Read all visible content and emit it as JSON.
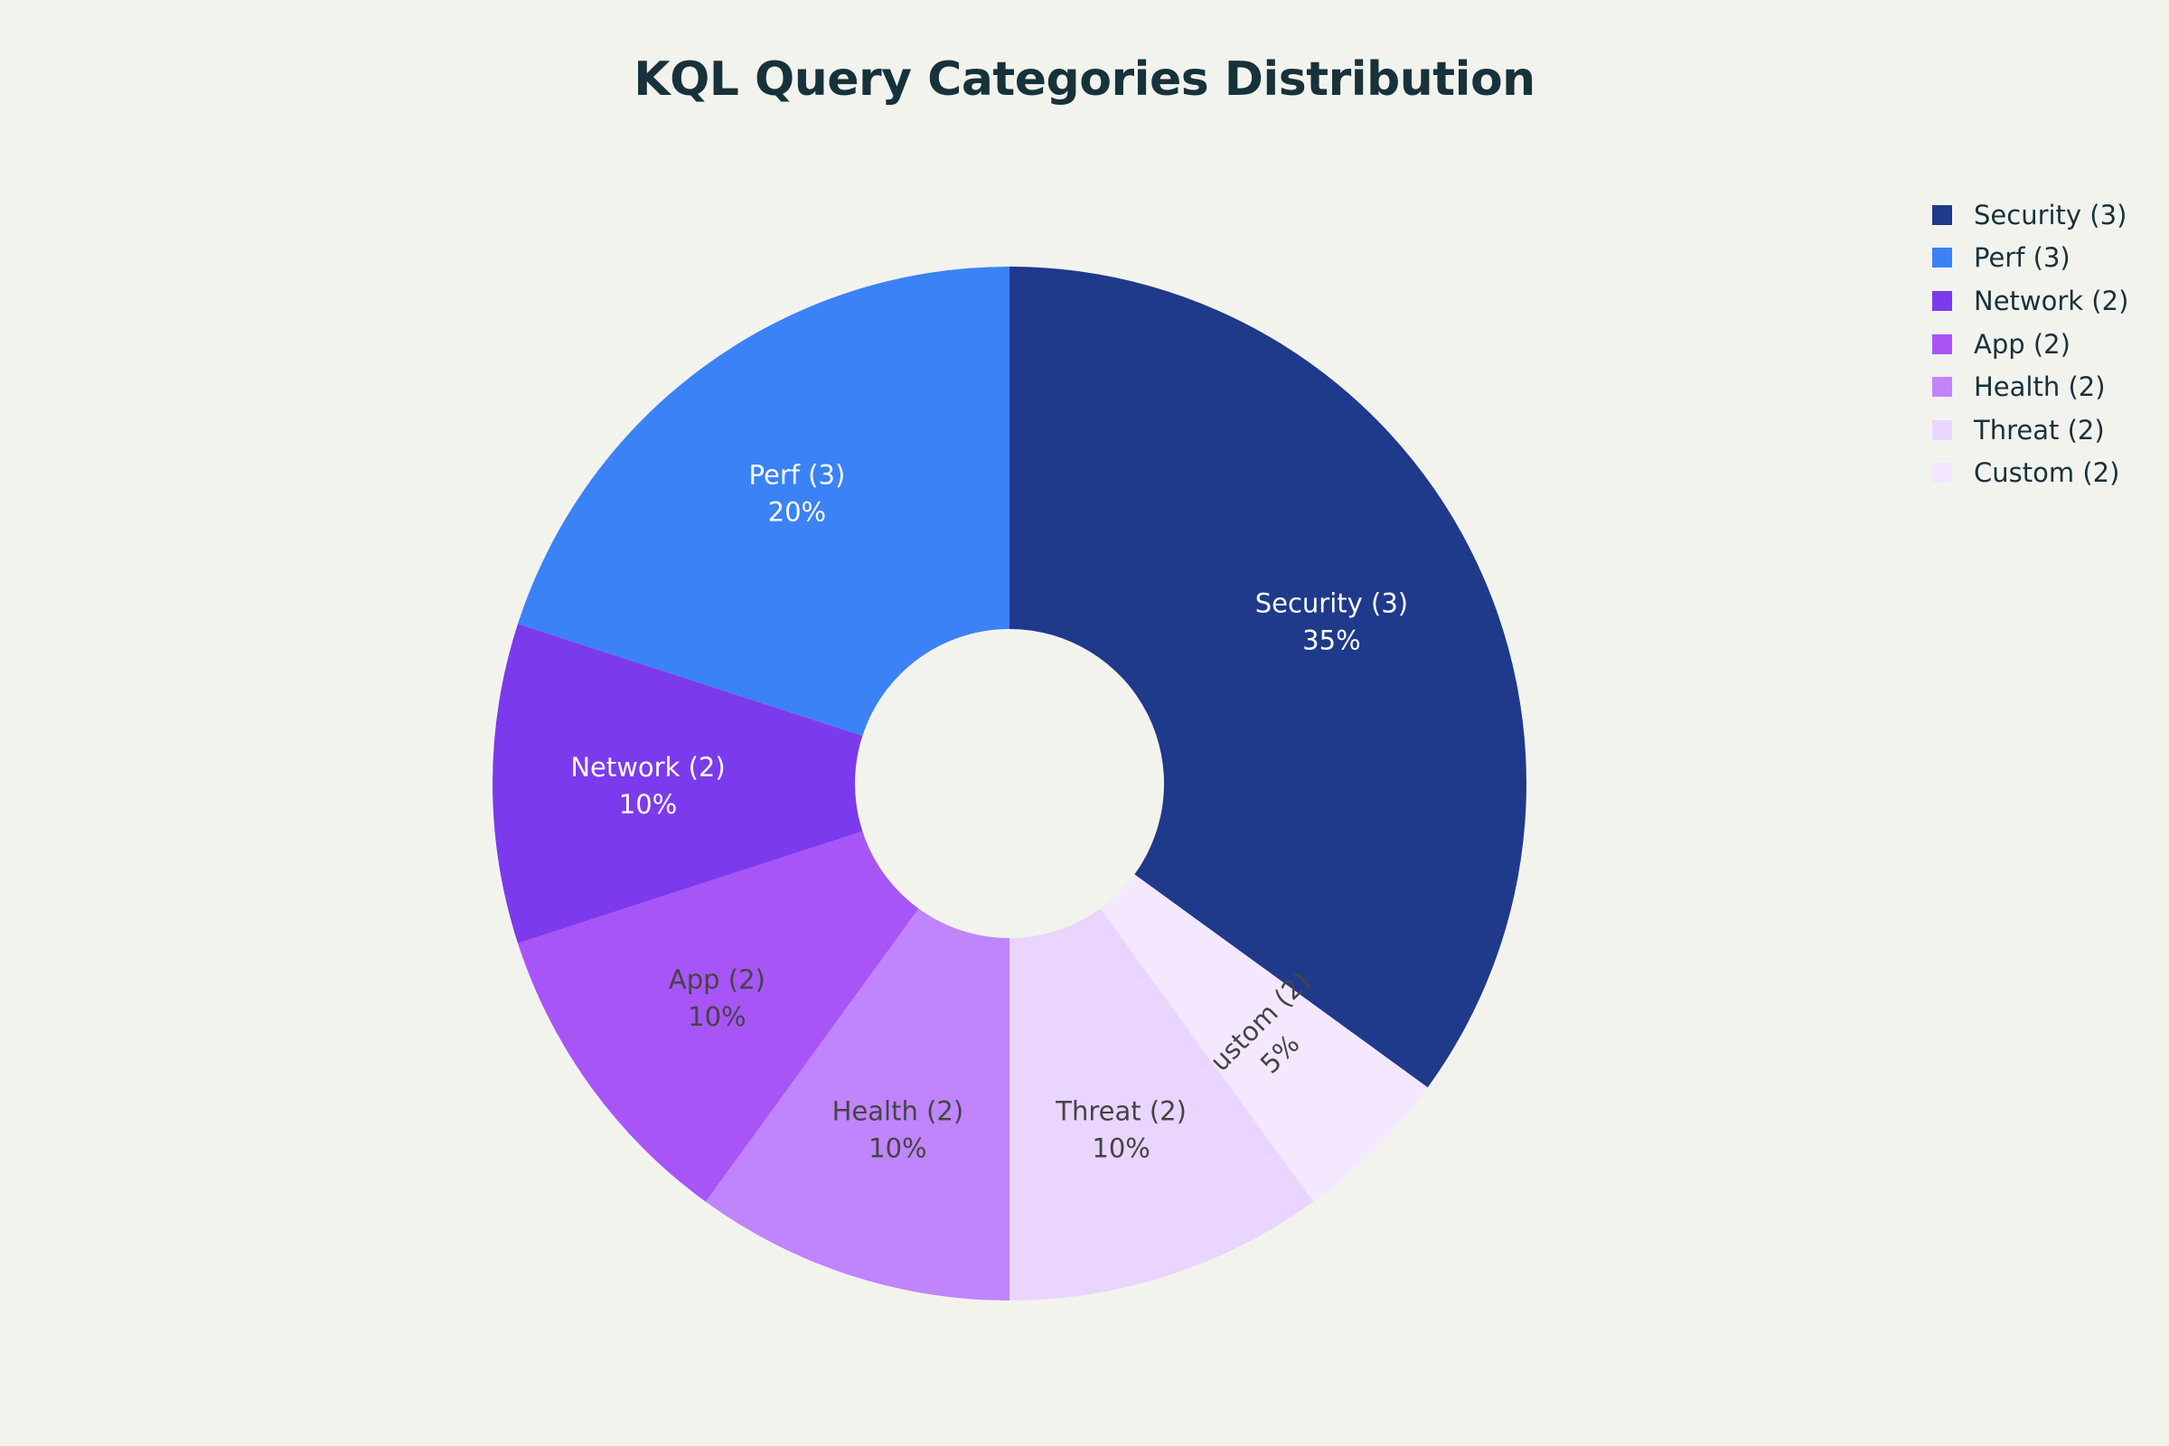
{
  "chart_data": {
    "type": "pie",
    "title": "KQL Query Categories Distribution",
    "hole": true,
    "legend_position": "top-right",
    "slices": [
      {
        "label": "Security (3)",
        "value": 35,
        "percent_label": "35%",
        "color": "#1f3a8a",
        "text_color": "#ffffff"
      },
      {
        "label": "Custom (2)",
        "value": 5,
        "percent_label": "5%",
        "color": "#f3e8ff",
        "text_color": "#444444"
      },
      {
        "label": "Threat (2)",
        "value": 10,
        "percent_label": "10%",
        "color": "#e9d5ff",
        "text_color": "#444444"
      },
      {
        "label": "Health (2)",
        "value": 10,
        "percent_label": "10%",
        "color": "#c084fc",
        "text_color": "#444444"
      },
      {
        "label": "App (2)",
        "value": 10,
        "percent_label": "10%",
        "color": "#a855f7",
        "text_color": "#444444"
      },
      {
        "label": "Network (2)",
        "value": 10,
        "percent_label": "10%",
        "color": "#7c3aed",
        "text_color": "#ffffff"
      },
      {
        "label": "Perf (3)",
        "value": 20,
        "percent_label": "20%",
        "color": "#3b82f6",
        "text_color": "#ffffff"
      }
    ],
    "legend": [
      {
        "label": "Security (3)",
        "color": "#1f3a8a"
      },
      {
        "label": "Perf (3)",
        "color": "#3b82f6"
      },
      {
        "label": "Network (2)",
        "color": "#7c3aed"
      },
      {
        "label": "App (2)",
        "color": "#a855f7"
      },
      {
        "label": "Health (2)",
        "color": "#c084fc"
      },
      {
        "label": "Threat (2)",
        "color": "#e9d5ff"
      },
      {
        "label": "Custom (2)",
        "color": "#f3e8ff"
      }
    ]
  }
}
